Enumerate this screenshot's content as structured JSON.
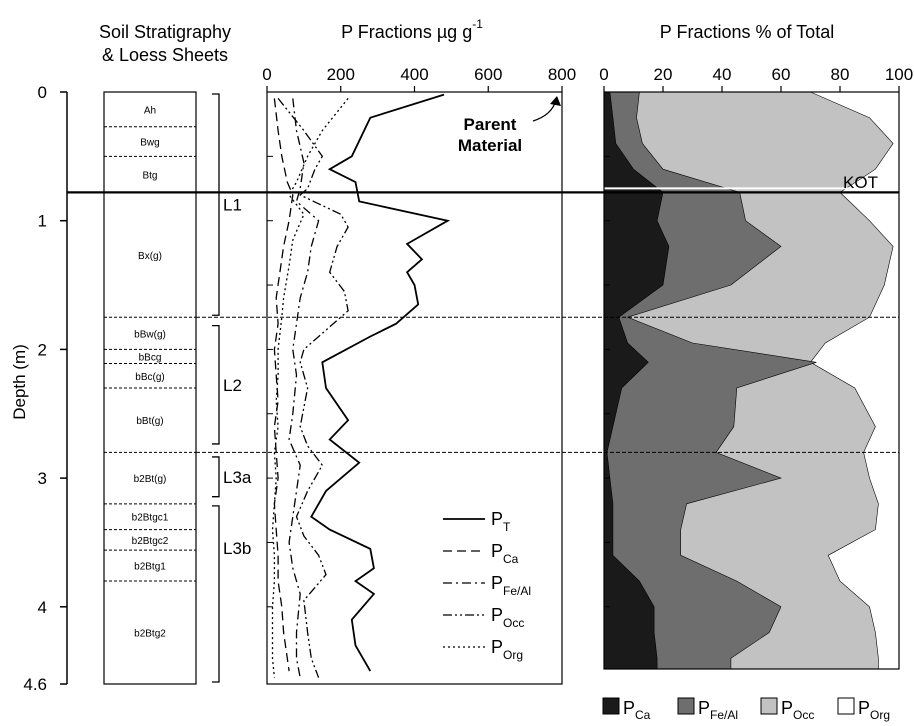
{
  "panels": {
    "stratigraphy": {
      "title_line1": "Soil Stratigraphy",
      "title_line2": "& Loess Sheets",
      "horizons": [
        {
          "label": "Ah",
          "top": 0.0,
          "bottom": 0.27
        },
        {
          "label": "Bwg",
          "top": 0.27,
          "bottom": 0.5
        },
        {
          "label": "Btg",
          "top": 0.5,
          "bottom": 0.78
        },
        {
          "label": "Bx(g)",
          "top": 0.78,
          "bottom": 1.75
        },
        {
          "label": "bBw(g)",
          "top": 1.75,
          "bottom": 2.0
        },
        {
          "label": "bBcg",
          "top": 2.0,
          "bottom": 2.11
        },
        {
          "label": "bBc(g)",
          "top": 2.11,
          "bottom": 2.3
        },
        {
          "label": "bBt(g)",
          "top": 2.3,
          "bottom": 2.8
        },
        {
          "label": "b2Bt(g)",
          "top": 2.8,
          "bottom": 3.2
        },
        {
          "label": "b2Btgc1",
          "top": 3.2,
          "bottom": 3.4
        },
        {
          "label": "b2Btgc2",
          "top": 3.4,
          "bottom": 3.56
        },
        {
          "label": "b2Btg1",
          "top": 3.56,
          "bottom": 3.8
        },
        {
          "label": "b2Btg2",
          "top": 3.8,
          "bottom": 4.6
        }
      ],
      "loess_sheets": [
        {
          "label": "L1",
          "top": 0.0,
          "bottom": 1.75
        },
        {
          "label": "L2",
          "top": 1.8,
          "bottom": 2.75
        },
        {
          "label": "L3a",
          "top": 2.82,
          "bottom": 3.16
        },
        {
          "label": "L3b",
          "top": 3.2,
          "bottom": 4.6
        }
      ]
    },
    "fractions": {
      "title_main": "P Fractions µg g",
      "title_sup": "-1",
      "annotation_line1": "Parent",
      "annotation_line2": "Material"
    },
    "percent": {
      "title": "P Fractions % of Total",
      "kot_label": "KOT"
    }
  },
  "y_axis": {
    "label": "Depth (m)",
    "ticks": [
      "0",
      "1",
      "2",
      "3",
      "4",
      "4.6"
    ]
  },
  "colors": {
    "p_ca": "#1a1a1a",
    "p_fe_al": "#6e6e6e",
    "p_occ": "#c2c2c2",
    "p_org": "#ffffff"
  },
  "chart_data": [
    {
      "type": "line",
      "xlabel": "P Fractions µg g-1",
      "ylabel": "Depth (m)",
      "xlim": [
        0,
        800
      ],
      "ylim": [
        0,
        4.6
      ],
      "x_ticks": [
        0,
        200,
        400,
        600,
        800
      ],
      "y_reversed": true,
      "series": [
        {
          "name": "P",
          "sub": "T",
          "style": "solid",
          "points": [
            [
              480,
              0.02
            ],
            [
              280,
              0.2
            ],
            [
              230,
              0.5
            ],
            [
              170,
              0.6
            ],
            [
              240,
              0.7
            ],
            [
              250,
              0.85
            ],
            [
              490,
              1.0
            ],
            [
              380,
              1.18
            ],
            [
              420,
              1.3
            ],
            [
              380,
              1.4
            ],
            [
              400,
              1.5
            ],
            [
              410,
              1.65
            ],
            [
              350,
              1.8
            ],
            [
              280,
              1.9
            ],
            [
              150,
              2.1
            ],
            [
              160,
              2.3
            ],
            [
              220,
              2.55
            ],
            [
              170,
              2.7
            ],
            [
              250,
              2.88
            ],
            [
              160,
              3.1
            ],
            [
              120,
              3.3
            ],
            [
              170,
              3.4
            ],
            [
              280,
              3.55
            ],
            [
              290,
              3.7
            ],
            [
              240,
              3.8
            ],
            [
              290,
              3.9
            ],
            [
              230,
              4.1
            ],
            [
              240,
              4.3
            ],
            [
              280,
              4.5
            ]
          ]
        },
        {
          "name": "P",
          "sub": "Ca",
          "style": "dashed",
          "points": [
            [
              20,
              0.05
            ],
            [
              30,
              0.3
            ],
            [
              40,
              0.5
            ],
            [
              55,
              0.7
            ],
            [
              70,
              0.8
            ],
            [
              60,
              1.0
            ],
            [
              45,
              1.2
            ],
            [
              35,
              1.4
            ],
            [
              25,
              1.6
            ],
            [
              30,
              1.8
            ],
            [
              20,
              2.0
            ],
            [
              25,
              2.2
            ],
            [
              30,
              2.4
            ],
            [
              20,
              2.6
            ],
            [
              25,
              2.8
            ],
            [
              30,
              3.0
            ],
            [
              20,
              3.2
            ],
            [
              25,
              3.4
            ],
            [
              30,
              3.6
            ],
            [
              30,
              3.8
            ],
            [
              40,
              4.0
            ],
            [
              45,
              4.2
            ],
            [
              55,
              4.4
            ],
            [
              60,
              4.5
            ]
          ]
        },
        {
          "name": "P",
          "sub": "Fe/Al",
          "style": "dashdot",
          "points": [
            [
              70,
              0.05
            ],
            [
              80,
              0.3
            ],
            [
              100,
              0.55
            ],
            [
              90,
              0.75
            ],
            [
              80,
              0.85
            ],
            [
              140,
              1.0
            ],
            [
              120,
              1.2
            ],
            [
              110,
              1.4
            ],
            [
              90,
              1.6
            ],
            [
              80,
              1.8
            ],
            [
              70,
              2.0
            ],
            [
              80,
              2.2
            ],
            [
              70,
              2.5
            ],
            [
              60,
              2.7
            ],
            [
              90,
              2.9
            ],
            [
              80,
              3.1
            ],
            [
              70,
              3.3
            ],
            [
              60,
              3.5
            ],
            [
              70,
              3.7
            ],
            [
              90,
              3.9
            ],
            [
              80,
              4.2
            ],
            [
              80,
              4.4
            ],
            [
              90,
              4.55
            ]
          ]
        },
        {
          "name": "P",
          "sub": "Occ",
          "style": "dashdotdot",
          "points": [
            [
              30,
              0.05
            ],
            [
              100,
              0.3
            ],
            [
              150,
              0.5
            ],
            [
              130,
              0.6
            ],
            [
              110,
              0.75
            ],
            [
              90,
              0.8
            ],
            [
              200,
              0.95
            ],
            [
              220,
              1.05
            ],
            [
              190,
              1.2
            ],
            [
              170,
              1.4
            ],
            [
              210,
              1.55
            ],
            [
              220,
              1.7
            ],
            [
              160,
              1.85
            ],
            [
              100,
              2.0
            ],
            [
              90,
              2.1
            ],
            [
              110,
              2.3
            ],
            [
              100,
              2.45
            ],
            [
              90,
              2.6
            ],
            [
              110,
              2.75
            ],
            [
              150,
              2.9
            ],
            [
              110,
              3.1
            ],
            [
              80,
              3.3
            ],
            [
              100,
              3.45
            ],
            [
              140,
              3.6
            ],
            [
              160,
              3.75
            ],
            [
              100,
              3.95
            ],
            [
              110,
              4.2
            ],
            [
              120,
              4.4
            ],
            [
              140,
              4.55
            ]
          ]
        },
        {
          "name": "P",
          "sub": "Org",
          "style": "dotted",
          "points": [
            [
              220,
              0.05
            ],
            [
              150,
              0.3
            ],
            [
              110,
              0.5
            ],
            [
              80,
              0.7
            ],
            [
              60,
              0.8
            ],
            [
              100,
              0.95
            ],
            [
              70,
              1.15
            ],
            [
              60,
              1.35
            ],
            [
              45,
              1.6
            ],
            [
              40,
              1.75
            ],
            [
              30,
              2.0
            ],
            [
              30,
              2.2
            ],
            [
              25,
              2.4
            ],
            [
              30,
              2.6
            ],
            [
              20,
              2.8
            ],
            [
              25,
              3.0
            ],
            [
              20,
              3.2
            ],
            [
              15,
              3.4
            ],
            [
              20,
              3.6
            ],
            [
              20,
              3.8
            ],
            [
              15,
              4.0
            ],
            [
              15,
              4.2
            ],
            [
              15,
              4.4
            ],
            [
              20,
              4.55
            ]
          ]
        }
      ],
      "annotation": "Parent Material"
    },
    {
      "type": "area",
      "stacked": true,
      "xlabel": "P Fractions % of Total",
      "xlim": [
        0,
        100
      ],
      "ylim": [
        0,
        4.6
      ],
      "x_ticks": [
        0,
        20,
        40,
        60,
        80,
        100
      ],
      "y_reversed": true,
      "depth": [
        0.0,
        0.2,
        0.4,
        0.6,
        0.78,
        1.0,
        1.2,
        1.5,
        1.75,
        1.95,
        2.1,
        2.3,
        2.6,
        2.8,
        3.0,
        3.2,
        3.4,
        3.6,
        3.8,
        4.0,
        4.2,
        4.4,
        4.6
      ],
      "series": [
        {
          "name": "P",
          "sub": "Ca",
          "cumulative": [
            2,
            3,
            4,
            10,
            20,
            18,
            22,
            20,
            5,
            8,
            15,
            6,
            3,
            1,
            2,
            3,
            3,
            3,
            12,
            17,
            17,
            18,
            18
          ]
        },
        {
          "name": "P",
          "sub": "Fe/Al",
          "cumulative": [
            12,
            11,
            13,
            20,
            46,
            48,
            60,
            43,
            8,
            30,
            72,
            45,
            44,
            38,
            60,
            28,
            26,
            26,
            45,
            60,
            56,
            43,
            43
          ]
        },
        {
          "name": "P",
          "sub": "Occ",
          "cumulative": [
            70,
            90,
            98,
            92,
            80,
            90,
            98,
            95,
            90,
            75,
            70,
            85,
            92,
            88,
            90,
            93,
            92,
            76,
            80,
            90,
            92,
            93,
            93
          ]
        },
        {
          "name": "P",
          "sub": "Org",
          "cumulative": [
            100,
            100,
            100,
            100,
            100,
            100,
            100,
            100,
            100,
            100,
            100,
            100,
            100,
            100,
            100,
            100,
            100,
            100,
            100,
            100,
            100,
            100,
            100
          ]
        }
      ],
      "reference_line": {
        "label": "KOT",
        "depth": 0.78
      },
      "dashed_lines_depths": [
        1.75,
        2.8
      ]
    }
  ]
}
